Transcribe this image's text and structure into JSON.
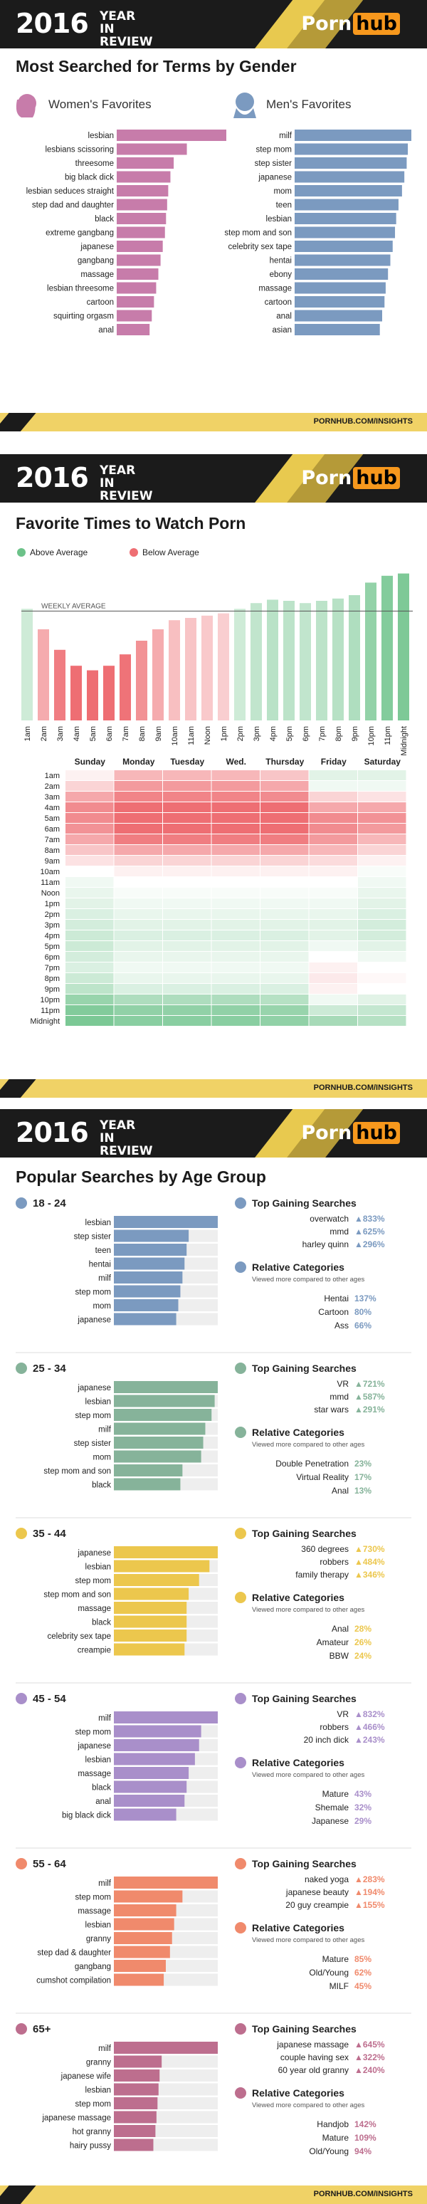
{
  "header": {
    "year": "2016",
    "year_in_review": "YEAR IN REVIEW",
    "logo_part1": "Porn",
    "logo_part2": "hub"
  },
  "footer": {
    "url": "PORNHUB.COM/INSIGHTS"
  },
  "colors": {
    "women": "#c77caa",
    "men": "#7b9ac0",
    "above": "#6cc289",
    "below": "#ee6e73",
    "gold": "#e8c94f",
    "dark": "#1b1b1b"
  },
  "gender": {
    "title": "Most Searched for Terms by Gender",
    "women_label": "Women's Favorites",
    "men_label": "Men's Favorites",
    "women_icon": "woman-silhouette-icon",
    "men_icon": "man-silhouette-icon"
  },
  "times": {
    "title": "Favorite Times to Watch Porn",
    "legend_above": "Above Average",
    "legend_below": "Below Average",
    "weekly_average_label": "WEEKLY AVERAGE"
  },
  "age": {
    "title": "Popular Searches by Age Group",
    "top_gaining_label": "Top Gaining Searches",
    "relative_label": "Relative Categories",
    "relative_sub": "Viewed more compared to other ages"
  },
  "chart_data": [
    {
      "type": "bar",
      "id": "women",
      "categories": [
        "lesbian",
        "lesbians scissoring",
        "threesome",
        "big black dick",
        "lesbian seduces straight",
        "step dad and daughter",
        "black",
        "extreme gangbang",
        "japanese",
        "gangbang",
        "massage",
        "lesbian threesome",
        "cartoon",
        "squirting orgasm",
        "anal"
      ],
      "values": [
        100,
        64,
        52,
        49,
        47,
        46,
        45,
        44,
        42,
        40,
        38,
        36,
        34,
        32,
        30
      ]
    },
    {
      "type": "bar",
      "id": "men",
      "categories": [
        "milf",
        "step mom",
        "step sister",
        "japanese",
        "mom",
        "teen",
        "lesbian",
        "step mom and son",
        "celebrity sex tape",
        "hentai",
        "ebony",
        "massage",
        "cartoon",
        "anal",
        "asian"
      ],
      "values": [
        100,
        97,
        96,
        94,
        92,
        89,
        87,
        86,
        84,
        82,
        80,
        78,
        77,
        75,
        73
      ]
    },
    {
      "type": "bar",
      "id": "hours",
      "categories": [
        "1am",
        "2am",
        "3am",
        "4am",
        "5am",
        "6am",
        "7am",
        "8am",
        "9am",
        "10am",
        "11am",
        "Noon",
        "1pm",
        "2pm",
        "3pm",
        "4pm",
        "5pm",
        "6pm",
        "7pm",
        "8pm",
        "9pm",
        "10pm",
        "11pm",
        "Midnight"
      ],
      "values": [
        98,
        80,
        62,
        48,
        44,
        48,
        58,
        70,
        80,
        88,
        90,
        92,
        94,
        98,
        103,
        106,
        105,
        103,
        105,
        107,
        110,
        121,
        127,
        129
      ],
      "weekly_average": 96
    },
    {
      "type": "heatmap",
      "id": "heatmap",
      "columns": [
        "Sunday",
        "Monday",
        "Tuesday",
        "Wed.",
        "Thursday",
        "Friday",
        "Saturday"
      ],
      "rows": [
        "1am",
        "2am",
        "3am",
        "4am",
        "5am",
        "6am",
        "7am",
        "8am",
        "9am",
        "10am",
        "11am",
        "Noon",
        "1pm",
        "2pm",
        "3pm",
        "4pm",
        "5pm",
        "6pm",
        "7pm",
        "8pm",
        "9pm",
        "10pm",
        "11pm",
        "Midnight"
      ],
      "values": [
        [
          -0.1,
          -0.5,
          -0.5,
          -0.5,
          -0.4,
          0.2,
          0.2
        ],
        [
          -0.3,
          -0.7,
          -0.7,
          -0.7,
          -0.6,
          0.1,
          0.1
        ],
        [
          -0.6,
          -0.85,
          -0.85,
          -0.85,
          -0.8,
          -0.3,
          -0.2
        ],
        [
          -0.8,
          -1,
          -1,
          -1,
          -1,
          -0.6,
          -0.6
        ],
        [
          -0.8,
          -1,
          -1,
          -1,
          -1,
          -0.8,
          -0.75
        ],
        [
          -0.75,
          -1,
          -1,
          -1,
          -1,
          -0.8,
          -0.7
        ],
        [
          -0.6,
          -0.9,
          -0.9,
          -0.9,
          -0.9,
          -0.7,
          -0.5
        ],
        [
          -0.4,
          -0.6,
          -0.6,
          -0.6,
          -0.6,
          -0.5,
          -0.3
        ],
        [
          -0.2,
          -0.3,
          -0.3,
          -0.3,
          -0.3,
          -0.25,
          -0.1
        ],
        [
          0,
          -0.1,
          -0.1,
          -0.1,
          -0.1,
          -0.1,
          0.05
        ],
        [
          0.1,
          0,
          0,
          0,
          0,
          0,
          0.1
        ],
        [
          0.15,
          0.05,
          0.05,
          0.05,
          0.05,
          0.05,
          0.15
        ],
        [
          0.2,
          0.1,
          0.1,
          0.1,
          0.1,
          0.1,
          0.2
        ],
        [
          0.25,
          0.15,
          0.15,
          0.15,
          0.15,
          0.15,
          0.25
        ],
        [
          0.3,
          0.2,
          0.2,
          0.2,
          0.2,
          0.2,
          0.3
        ],
        [
          0.35,
          0.25,
          0.25,
          0.25,
          0.25,
          0.2,
          0.3
        ],
        [
          0.35,
          0.2,
          0.2,
          0.2,
          0.2,
          0.1,
          0.2
        ],
        [
          0.3,
          0.15,
          0.15,
          0.15,
          0.15,
          0,
          0.1
        ],
        [
          0.25,
          0.1,
          0.1,
          0.1,
          0.1,
          -0.1,
          0
        ],
        [
          0.35,
          0.15,
          0.15,
          0.15,
          0.15,
          -0.15,
          -0.05
        ],
        [
          0.45,
          0.25,
          0.25,
          0.25,
          0.25,
          -0.1,
          0
        ],
        [
          0.7,
          0.55,
          0.55,
          0.55,
          0.5,
          0.1,
          0.2
        ],
        [
          0.85,
          0.75,
          0.75,
          0.75,
          0.7,
          0.35,
          0.4
        ],
        [
          0.9,
          0.8,
          0.8,
          0.8,
          0.75,
          0.6,
          0.5
        ]
      ]
    },
    {
      "type": "bar",
      "id": "age_groups",
      "groups": [
        {
          "name": "18 - 24",
          "color": "#7b9ac0",
          "categories": [
            "lesbian",
            "step sister",
            "teen",
            "hentai",
            "milf",
            "step mom",
            "mom",
            "japanese"
          ],
          "values": [
            100,
            72,
            70,
            68,
            66,
            64,
            62,
            60
          ],
          "gaining": [
            [
              "overwatch",
              "▲833%"
            ],
            [
              "mmd",
              "▲625%"
            ],
            [
              "harley quinn",
              "▲296%"
            ]
          ],
          "relative": [
            [
              "Hentai",
              "137%"
            ],
            [
              "Cartoon",
              "80%"
            ],
            [
              "Ass",
              "66%"
            ]
          ]
        },
        {
          "name": "25 - 34",
          "color": "#86b39a",
          "categories": [
            "japanese",
            "lesbian",
            "step mom",
            "milf",
            "step sister",
            "mom",
            "step mom and son",
            "black"
          ],
          "values": [
            100,
            97,
            94,
            88,
            86,
            84,
            66,
            64
          ],
          "gaining": [
            [
              "VR",
              "▲721%"
            ],
            [
              "mmd",
              "▲587%"
            ],
            [
              "star wars",
              "▲291%"
            ]
          ],
          "relative": [
            [
              "Double Penetration",
              "23%"
            ],
            [
              "Virtual Reality",
              "17%"
            ],
            [
              "Anal",
              "13%"
            ]
          ]
        },
        {
          "name": "35 - 44",
          "color": "#ecc74d",
          "categories": [
            "japanese",
            "lesbian",
            "step mom",
            "step mom and son",
            "massage",
            "black",
            "celebrity sex tape",
            "creampie"
          ],
          "values": [
            100,
            92,
            82,
            72,
            70,
            70,
            70,
            68
          ],
          "gaining": [
            [
              "360 degrees",
              "▲730%"
            ],
            [
              "robbers",
              "▲484%"
            ],
            [
              "family therapy",
              "▲346%"
            ]
          ],
          "relative": [
            [
              "Anal",
              "28%"
            ],
            [
              "Amateur",
              "26%"
            ],
            [
              "BBW",
              "24%"
            ]
          ]
        },
        {
          "name": "45 - 54",
          "color": "#a98fca",
          "categories": [
            "milf",
            "step mom",
            "japanese",
            "lesbian",
            "massage",
            "black",
            "anal",
            "big black dick"
          ],
          "values": [
            100,
            84,
            82,
            78,
            72,
            70,
            68,
            60
          ],
          "gaining": [
            [
              "VR",
              "▲832%"
            ],
            [
              "robbers",
              "▲466%"
            ],
            [
              "20 inch dick",
              "▲243%"
            ]
          ],
          "relative": [
            [
              "Mature",
              "43%"
            ],
            [
              "Shemale",
              "32%"
            ],
            [
              "Japanese",
              "29%"
            ]
          ]
        },
        {
          "name": "55 - 64",
          "color": "#f08a6c",
          "categories": [
            "milf",
            "step mom",
            "massage",
            "lesbian",
            "granny",
            "step dad & daughter",
            "gangbang",
            "cumshot compilation"
          ],
          "values": [
            100,
            66,
            60,
            58,
            56,
            54,
            50,
            48
          ],
          "gaining": [
            [
              "naked yoga",
              "▲283%"
            ],
            [
              "japanese beauty",
              "▲194%"
            ],
            [
              "20 guy creampie",
              "▲155%"
            ]
          ],
          "relative": [
            [
              "Mature",
              "85%"
            ],
            [
              "Old/Young",
              "62%"
            ],
            [
              "MILF",
              "45%"
            ]
          ]
        },
        {
          "name": "65+",
          "color": "#bd6e8e",
          "categories": [
            "milf",
            "granny",
            "japanese wife",
            "lesbian",
            "step mom",
            "japanese massage",
            "hot granny",
            "hairy pussy"
          ],
          "values": [
            100,
            46,
            44,
            43,
            42,
            41,
            40,
            38
          ],
          "gaining": [
            [
              "japanese massage",
              "▲645%"
            ],
            [
              "couple having sex",
              "▲322%"
            ],
            [
              "60 year old granny",
              "▲240%"
            ]
          ],
          "relative": [
            [
              "Handjob",
              "142%"
            ],
            [
              "Mature",
              "109%"
            ],
            [
              "Old/Young",
              "94%"
            ]
          ]
        }
      ]
    }
  ]
}
